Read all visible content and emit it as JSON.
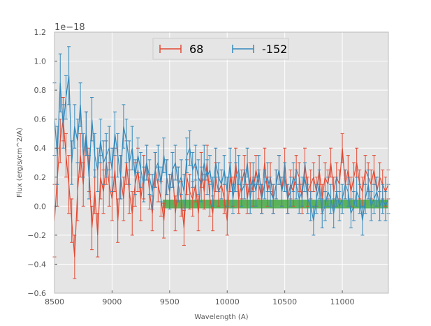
{
  "chart_data": {
    "type": "line",
    "title": "",
    "xlabel": "Wavelength (A)",
    "ylabel": "Flux (erg/s/cm^2/A)",
    "y_offset_label": "1e−18",
    "xlim": [
      8500,
      11400
    ],
    "ylim": [
      -0.6,
      1.2
    ],
    "xticks": [
      8500,
      9000,
      9500,
      10000,
      10500,
      11000
    ],
    "xtick_labels": [
      "8500",
      "9000",
      "9500",
      "10000",
      "10500",
      "11000"
    ],
    "yticks": [
      -0.6,
      -0.4,
      -0.2,
      0.0,
      0.2,
      0.4,
      0.6,
      0.8,
      1.0,
      1.2
    ],
    "ytick_labels": [
      "−0.6",
      "−0.4",
      "−0.2",
      "0.0",
      "0.2",
      "0.4",
      "0.6",
      "0.8",
      "1.0",
      "1.2"
    ],
    "grid": true,
    "legend_position": "upper-center",
    "band": {
      "x_start": 9440,
      "x_end": 11400,
      "y_low": -0.015,
      "y_high": 0.045,
      "color": "#2ca02c"
    },
    "series": [
      {
        "name": "68",
        "color": "#e24a33",
        "x": [
          8500,
          8525,
          8550,
          8575,
          8600,
          8625,
          8650,
          8675,
          8700,
          8725,
          8750,
          8775,
          8800,
          8825,
          8850,
          8875,
          8900,
          8925,
          8950,
          8975,
          9000,
          9025,
          9050,
          9075,
          9100,
          9125,
          9150,
          9175,
          9200,
          9225,
          9250,
          9275,
          9300,
          9325,
          9350,
          9375,
          9400,
          9425,
          9450,
          9475,
          9500,
          9525,
          9550,
          9575,
          9600,
          9625,
          9650,
          9675,
          9700,
          9725,
          9750,
          9775,
          9800,
          9825,
          9850,
          9875,
          9900,
          9925,
          9950,
          9975,
          10000,
          10025,
          10050,
          10075,
          10100,
          10125,
          10150,
          10175,
          10200,
          10225,
          10250,
          10275,
          10300,
          10325,
          10350,
          10375,
          10400,
          10425,
          10450,
          10475,
          10500,
          10525,
          10550,
          10575,
          10600,
          10625,
          10650,
          10675,
          10700,
          10725,
          10750,
          10775,
          10800,
          10825,
          10850,
          10875,
          10900,
          10925,
          10950,
          10975,
          11000,
          11025,
          11050,
          11075,
          11100,
          11125,
          11150,
          11175,
          11200,
          11225,
          11250,
          11275,
          11300,
          11325,
          11350,
          11375,
          11400
        ],
        "y": [
          -0.1,
          0.2,
          0.45,
          0.6,
          0.35,
          0.15,
          -0.1,
          -0.35,
          0.1,
          0.35,
          0.15,
          0.5,
          0.25,
          -0.15,
          0.1,
          -0.2,
          0.2,
          0.1,
          0.3,
          0.15,
          0.05,
          0.25,
          -0.1,
          0.2,
          0.05,
          0.3,
          0.1,
          -0.05,
          0.15,
          0.25,
          0.05,
          0.2,
          0.3,
          0.1,
          -0.05,
          0.25,
          0.15,
          0.05,
          -0.1,
          0.2,
          0.1,
          0.25,
          -0.05,
          0.15,
          0.05,
          -0.15,
          0.2,
          0.1,
          0.05,
          0.15,
          -0.05,
          0.25,
          0.1,
          0.3,
          0.05,
          -0.05,
          0.2,
          0.1,
          0.15,
          0.05,
          -0.1,
          0.2,
          0.1,
          0.3,
          0.05,
          0.15,
          0.25,
          0.05,
          0.2,
          0.1,
          0.25,
          0.15,
          0.05,
          0.3,
          0.1,
          0.2,
          0.05,
          0.15,
          0.25,
          0.1,
          0.3,
          0.05,
          0.15,
          0.1,
          0.25,
          0.2,
          0.05,
          0.3,
          0.1,
          0.15,
          0.2,
          0.1,
          0.25,
          0.05,
          0.2,
          0.15,
          0.3,
          0.1,
          0.2,
          0.15,
          0.4,
          0.15,
          0.25,
          0.1,
          0.2,
          0.3,
          0.15,
          0.1,
          0.25,
          0.2,
          0.15,
          0.25,
          0.1,
          0.2,
          0.15,
          0.1,
          0.15
        ],
        "yerr": [
          0.25,
          0.2,
          0.15,
          0.15,
          0.15,
          0.2,
          0.15,
          0.15,
          0.2,
          0.15,
          0.15,
          0.15,
          0.15,
          0.15,
          0.15,
          0.15,
          0.15,
          0.15,
          0.15,
          0.15,
          0.15,
          0.15,
          0.15,
          0.15,
          0.15,
          0.15,
          0.15,
          0.15,
          0.15,
          0.15,
          0.15,
          0.15,
          0.12,
          0.12,
          0.12,
          0.12,
          0.12,
          0.12,
          0.12,
          0.12,
          0.12,
          0.12,
          0.12,
          0.12,
          0.12,
          0.12,
          0.12,
          0.12,
          0.12,
          0.12,
          0.12,
          0.12,
          0.12,
          0.12,
          0.12,
          0.12,
          0.1,
          0.1,
          0.1,
          0.1,
          0.1,
          0.1,
          0.1,
          0.1,
          0.1,
          0.1,
          0.1,
          0.1,
          0.1,
          0.1,
          0.1,
          0.1,
          0.1,
          0.1,
          0.1,
          0.1,
          0.1,
          0.1,
          0.1,
          0.1,
          0.1,
          0.1,
          0.1,
          0.1,
          0.1,
          0.1,
          0.1,
          0.1,
          0.1,
          0.1,
          0.1,
          0.1,
          0.1,
          0.1,
          0.1,
          0.1,
          0.1,
          0.1,
          0.1,
          0.1,
          0.1,
          0.1,
          0.1,
          0.1,
          0.1,
          0.1,
          0.1,
          0.1,
          0.1,
          0.1,
          0.1,
          0.1,
          0.1,
          0.1,
          0.1,
          0.1,
          0.1
        ]
      },
      {
        "name": "-152",
        "color": "#348abd",
        "x": [
          8500,
          8525,
          8550,
          8575,
          8600,
          8625,
          8650,
          8675,
          8700,
          8725,
          8750,
          8775,
          8800,
          8825,
          8850,
          8875,
          8900,
          8925,
          8950,
          8975,
          9000,
          9025,
          9050,
          9075,
          9100,
          9125,
          9150,
          9175,
          9200,
          9225,
          9250,
          9275,
          9300,
          9325,
          9350,
          9375,
          9400,
          9425,
          9450,
          9475,
          9500,
          9525,
          9550,
          9575,
          9600,
          9625,
          9650,
          9675,
          9700,
          9725,
          9750,
          9775,
          9800,
          9825,
          9850,
          9875,
          9900,
          9925,
          9950,
          9975,
          10000,
          10025,
          10050,
          10075,
          10100,
          10125,
          10150,
          10175,
          10200,
          10225,
          10250,
          10275,
          10300,
          10325,
          10350,
          10375,
          10400,
          10425,
          10450,
          10475,
          10500,
          10525,
          10550,
          10575,
          10600,
          10625,
          10650,
          10675,
          10700,
          10725,
          10750,
          10775,
          10800,
          10825,
          10850,
          10875,
          10900,
          10925,
          10950,
          10975,
          11000,
          11025,
          11050,
          11075,
          11100,
          11125,
          11150,
          11175,
          11200,
          11225,
          11250,
          11275,
          11300,
          11325,
          11350,
          11375,
          11400
        ],
        "y": [
          0.6,
          0.35,
          0.85,
          0.55,
          0.75,
          0.9,
          0.3,
          0.55,
          0.45,
          0.7,
          0.35,
          0.5,
          0.2,
          0.6,
          0.35,
          0.25,
          0.45,
          0.3,
          0.35,
          0.4,
          0.25,
          0.5,
          0.35,
          0.2,
          0.55,
          0.45,
          0.3,
          0.4,
          0.2,
          0.35,
          0.25,
          0.15,
          0.3,
          0.2,
          0.1,
          0.25,
          0.3,
          0.15,
          0.35,
          0.2,
          0.1,
          0.25,
          0.3,
          0.15,
          0.2,
          0.1,
          0.35,
          0.4,
          0.25,
          0.3,
          0.2,
          0.15,
          0.3,
          0.2,
          0.25,
          0.1,
          0.3,
          0.2,
          0.15,
          0.25,
          0.1,
          0.3,
          0.05,
          0.2,
          0.25,
          0.1,
          0.15,
          0.3,
          0.05,
          0.2,
          0.1,
          0.25,
          0.05,
          0.15,
          0.2,
          0.1,
          0.05,
          0.15,
          0.25,
          0.1,
          0.2,
          0.05,
          0.1,
          0.2,
          0.15,
          0.05,
          0.1,
          0.2,
          0.05,
          0.0,
          -0.1,
          0.05,
          0.15,
          -0.05,
          0.0,
          0.1,
          0.05,
          -0.05,
          0.1,
          0.0,
          0.05,
          0.15,
          0.1,
          -0.05,
          0.0,
          0.1,
          0.05,
          -0.1,
          0.05,
          0.15,
          0.0,
          0.05,
          0.1,
          0.0,
          0.05,
          0.0,
          0.05
        ],
        "yerr": [
          0.25,
          0.2,
          0.2,
          0.15,
          0.15,
          0.2,
          0.15,
          0.15,
          0.15,
          0.15,
          0.15,
          0.15,
          0.15,
          0.15,
          0.15,
          0.15,
          0.15,
          0.15,
          0.15,
          0.15,
          0.15,
          0.15,
          0.15,
          0.15,
          0.15,
          0.15,
          0.15,
          0.15,
          0.12,
          0.12,
          0.12,
          0.12,
          0.12,
          0.12,
          0.12,
          0.12,
          0.12,
          0.12,
          0.12,
          0.12,
          0.12,
          0.12,
          0.12,
          0.12,
          0.12,
          0.12,
          0.12,
          0.12,
          0.12,
          0.12,
          0.12,
          0.12,
          0.12,
          0.12,
          0.1,
          0.1,
          0.1,
          0.1,
          0.1,
          0.1,
          0.1,
          0.1,
          0.1,
          0.1,
          0.1,
          0.1,
          0.1,
          0.1,
          0.1,
          0.1,
          0.1,
          0.1,
          0.1,
          0.1,
          0.1,
          0.1,
          0.1,
          0.1,
          0.1,
          0.1,
          0.1,
          0.1,
          0.1,
          0.1,
          0.1,
          0.1,
          0.1,
          0.1,
          0.1,
          0.1,
          0.1,
          0.1,
          0.1,
          0.1,
          0.1,
          0.1,
          0.1,
          0.1,
          0.1,
          0.1,
          0.1,
          0.1,
          0.1,
          0.1,
          0.1,
          0.1,
          0.1,
          0.1,
          0.1,
          0.1,
          0.1,
          0.1,
          0.1,
          0.1,
          0.1,
          0.1,
          0.1
        ]
      }
    ]
  }
}
